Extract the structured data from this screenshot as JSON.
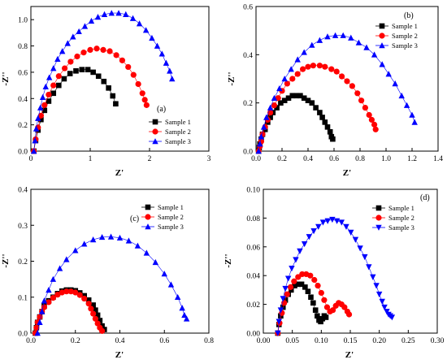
{
  "chart_data": [
    {
      "type": "scatter",
      "panel_label": "(a)",
      "xlabel": "Z'",
      "ylabel": "-Z''",
      "xlim": [
        0,
        3
      ],
      "ylim": [
        0,
        1.1
      ],
      "xticks": [
        "0",
        "1",
        "2",
        "3"
      ],
      "yticks": [
        "0.0",
        "0.2",
        "0.4",
        "0.6",
        "0.8",
        "1.0"
      ],
      "legend": "lower-right",
      "series": [
        {
          "name": "Sample 1",
          "marker": "square",
          "color": "#000000",
          "x": [
            0.05,
            0.08,
            0.12,
            0.17,
            0.23,
            0.3,
            0.38,
            0.47,
            0.56,
            0.66,
            0.76,
            0.86,
            0.96,
            1.05,
            1.14,
            1.23,
            1.31,
            1.38,
            1.43
          ],
          "y": [
            0.0,
            0.08,
            0.16,
            0.24,
            0.31,
            0.38,
            0.44,
            0.5,
            0.55,
            0.59,
            0.61,
            0.62,
            0.62,
            0.6,
            0.57,
            0.53,
            0.48,
            0.42,
            0.36
          ]
        },
        {
          "name": "Sample 2",
          "marker": "circle",
          "color": "#ff0000",
          "x": [
            0.05,
            0.08,
            0.12,
            0.17,
            0.23,
            0.3,
            0.38,
            0.47,
            0.57,
            0.67,
            0.78,
            0.89,
            1.0,
            1.11,
            1.22,
            1.33,
            1.44,
            1.54,
            1.64,
            1.73,
            1.81,
            1.88,
            1.92,
            1.95
          ],
          "y": [
            0.0,
            0.09,
            0.18,
            0.27,
            0.35,
            0.43,
            0.5,
            0.57,
            0.63,
            0.68,
            0.72,
            0.75,
            0.77,
            0.78,
            0.77,
            0.76,
            0.73,
            0.69,
            0.64,
            0.58,
            0.51,
            0.44,
            0.39,
            0.35
          ]
        },
        {
          "name": "Sample 3",
          "marker": "triangle",
          "color": "#0000ff",
          "x": [
            0.05,
            0.07,
            0.09,
            0.12,
            0.16,
            0.2,
            0.25,
            0.31,
            0.38,
            0.45,
            0.53,
            0.62,
            0.71,
            0.81,
            0.91,
            1.02,
            1.13,
            1.24,
            1.36,
            1.48,
            1.6,
            1.72,
            1.83,
            1.94,
            2.04,
            2.13,
            2.21,
            2.28,
            2.34,
            2.38
          ],
          "y": [
            0.0,
            0.08,
            0.17,
            0.25,
            0.33,
            0.41,
            0.49,
            0.56,
            0.63,
            0.7,
            0.76,
            0.82,
            0.87,
            0.91,
            0.95,
            0.99,
            1.02,
            1.04,
            1.05,
            1.05,
            1.04,
            1.01,
            0.97,
            0.92,
            0.86,
            0.8,
            0.74,
            0.67,
            0.61,
            0.55
          ]
        }
      ]
    },
    {
      "type": "scatter",
      "panel_label": "(b)",
      "xlabel": "Z'",
      "ylabel": "-Z''",
      "xlim": [
        0,
        1.4
      ],
      "ylim": [
        0,
        0.6
      ],
      "xticks": [
        "0.0",
        "0.2",
        "0.4",
        "0.6",
        "0.8",
        "1.0",
        "1.2",
        "1.4"
      ],
      "yticks": [
        "0.0",
        "0.2",
        "0.4",
        "0.6"
      ],
      "legend": "top-right",
      "series": [
        {
          "name": "Sample 1",
          "marker": "square",
          "color": "#000000",
          "x": [
            0.02,
            0.025,
            0.03,
            0.04,
            0.05,
            0.07,
            0.09,
            0.11,
            0.13,
            0.16,
            0.19,
            0.22,
            0.25,
            0.28,
            0.31,
            0.34,
            0.37,
            0.4,
            0.43,
            0.46,
            0.49,
            0.51,
            0.53,
            0.55,
            0.57,
            0.58,
            0.59
          ],
          "y": [
            0.0,
            0.015,
            0.03,
            0.05,
            0.07,
            0.09,
            0.12,
            0.14,
            0.16,
            0.18,
            0.2,
            0.21,
            0.22,
            0.23,
            0.23,
            0.23,
            0.22,
            0.21,
            0.2,
            0.18,
            0.16,
            0.14,
            0.12,
            0.1,
            0.08,
            0.06,
            0.05
          ]
        },
        {
          "name": "Sample 2",
          "marker": "circle",
          "color": "#ff0000",
          "x": [
            0.02,
            0.03,
            0.04,
            0.05,
            0.07,
            0.09,
            0.11,
            0.14,
            0.17,
            0.2,
            0.24,
            0.28,
            0.32,
            0.36,
            0.4,
            0.44,
            0.49,
            0.53,
            0.58,
            0.62,
            0.66,
            0.7,
            0.74,
            0.78,
            0.81,
            0.84,
            0.87,
            0.89,
            0.91,
            0.92
          ],
          "y": [
            0.0,
            0.02,
            0.04,
            0.07,
            0.1,
            0.13,
            0.16,
            0.19,
            0.22,
            0.25,
            0.28,
            0.3,
            0.32,
            0.34,
            0.35,
            0.355,
            0.355,
            0.35,
            0.34,
            0.33,
            0.31,
            0.29,
            0.27,
            0.24,
            0.21,
            0.18,
            0.15,
            0.13,
            0.11,
            0.09
          ]
        },
        {
          "name": "Sample 3",
          "marker": "triangle",
          "color": "#0000ff",
          "x": [
            0.02,
            0.03,
            0.04,
            0.06,
            0.08,
            0.11,
            0.14,
            0.18,
            0.22,
            0.27,
            0.32,
            0.37,
            0.43,
            0.49,
            0.55,
            0.61,
            0.67,
            0.73,
            0.79,
            0.85,
            0.91,
            0.97,
            1.02,
            1.07,
            1.12,
            1.16,
            1.2,
            1.22
          ],
          "y": [
            0.0,
            0.03,
            0.06,
            0.1,
            0.14,
            0.18,
            0.22,
            0.26,
            0.3,
            0.34,
            0.38,
            0.41,
            0.44,
            0.46,
            0.475,
            0.48,
            0.48,
            0.47,
            0.45,
            0.43,
            0.4,
            0.36,
            0.32,
            0.28,
            0.23,
            0.19,
            0.15,
            0.12
          ]
        }
      ]
    },
    {
      "type": "scatter",
      "panel_label": "(c)",
      "xlabel": "Z'",
      "ylabel": "-Z''",
      "xlim": [
        0,
        0.8
      ],
      "ylim": [
        0,
        0.4
      ],
      "xticks": [
        "0.0",
        "0.2",
        "0.4",
        "0.6",
        "0.8"
      ],
      "yticks": [
        "0.0",
        "0.1",
        "0.2",
        "0.3",
        "0.4"
      ],
      "legend": "top-right",
      "series": [
        {
          "name": "Sample 1",
          "marker": "square",
          "color": "#000000",
          "x": [
            0.02,
            0.025,
            0.03,
            0.04,
            0.05,
            0.06,
            0.08,
            0.1,
            0.12,
            0.14,
            0.16,
            0.18,
            0.2,
            0.22,
            0.24,
            0.26,
            0.28,
            0.29,
            0.3,
            0.31,
            0.32,
            0.33
          ],
          "y": [
            0.0,
            0.015,
            0.03,
            0.045,
            0.06,
            0.075,
            0.09,
            0.1,
            0.11,
            0.117,
            0.12,
            0.12,
            0.118,
            0.112,
            0.104,
            0.092,
            0.078,
            0.064,
            0.05,
            0.035,
            0.02,
            0.01
          ]
        },
        {
          "name": "Sample 2",
          "marker": "circle",
          "color": "#ff0000",
          "x": [
            0.02,
            0.025,
            0.03,
            0.04,
            0.05,
            0.06,
            0.08,
            0.1,
            0.12,
            0.14,
            0.16,
            0.18,
            0.2,
            0.22,
            0.24,
            0.26,
            0.27,
            0.28,
            0.29,
            0.3,
            0.31,
            0.32
          ],
          "y": [
            0.0,
            0.015,
            0.03,
            0.045,
            0.06,
            0.072,
            0.086,
            0.098,
            0.107,
            0.113,
            0.116,
            0.116,
            0.113,
            0.106,
            0.096,
            0.082,
            0.068,
            0.054,
            0.04,
            0.027,
            0.015,
            0.006
          ]
        },
        {
          "name": "Sample 3",
          "marker": "triangle",
          "color": "#0000ff",
          "x": [
            0.03,
            0.04,
            0.05,
            0.06,
            0.08,
            0.1,
            0.13,
            0.16,
            0.2,
            0.24,
            0.28,
            0.32,
            0.36,
            0.4,
            0.44,
            0.48,
            0.52,
            0.56,
            0.6,
            0.63,
            0.66,
            0.68,
            0.69,
            0.7
          ],
          "y": [
            0.0,
            0.03,
            0.06,
            0.09,
            0.12,
            0.15,
            0.18,
            0.205,
            0.23,
            0.248,
            0.26,
            0.267,
            0.268,
            0.265,
            0.257,
            0.243,
            0.223,
            0.197,
            0.165,
            0.135,
            0.1,
            0.07,
            0.05,
            0.04
          ]
        }
      ]
    },
    {
      "type": "scatter",
      "panel_label": "(d)",
      "xlabel": "Z'",
      "ylabel": "-Z''",
      "xlim": [
        0,
        0.3
      ],
      "ylim": [
        0,
        0.1
      ],
      "xticks": [
        "0.00",
        "0.05",
        "0.10",
        "0.15",
        "0.20",
        "0.25",
        "0.30"
      ],
      "yticks": [
        "0.00",
        "0.02",
        "0.04",
        "0.06",
        "0.08",
        "0.10"
      ],
      "legend": "top-right",
      "series": [
        {
          "name": "Sample 1",
          "marker": "square",
          "color": "#000000",
          "x": [
            0.025,
            0.027,
            0.03,
            0.034,
            0.038,
            0.043,
            0.048,
            0.054,
            0.06,
            0.066,
            0.072,
            0.077,
            0.082,
            0.086,
            0.09,
            0.093,
            0.096,
            0.099,
            0.102,
            0.105,
            0.108
          ],
          "y": [
            0.0,
            0.006,
            0.012,
            0.018,
            0.023,
            0.027,
            0.03,
            0.033,
            0.034,
            0.034,
            0.032,
            0.029,
            0.025,
            0.021,
            0.016,
            0.012,
            0.009,
            0.008,
            0.01,
            0.012,
            0.011
          ]
        },
        {
          "name": "Sample 2",
          "marker": "circle",
          "color": "#ff0000",
          "x": [
            0.025,
            0.028,
            0.032,
            0.036,
            0.041,
            0.047,
            0.053,
            0.06,
            0.067,
            0.074,
            0.081,
            0.088,
            0.094,
            0.1,
            0.105,
            0.11,
            0.115,
            0.12,
            0.125,
            0.13,
            0.135,
            0.14,
            0.145,
            0.148
          ],
          "y": [
            0.0,
            0.007,
            0.014,
            0.021,
            0.027,
            0.032,
            0.036,
            0.039,
            0.041,
            0.041,
            0.04,
            0.037,
            0.033,
            0.028,
            0.023,
            0.018,
            0.015,
            0.016,
            0.019,
            0.021,
            0.02,
            0.018,
            0.015,
            0.013
          ]
        },
        {
          "name": "Sample 3",
          "marker": "triangle-down",
          "color": "#0000ff",
          "x": [
            0.025,
            0.027,
            0.03,
            0.034,
            0.038,
            0.043,
            0.049,
            0.056,
            0.063,
            0.071,
            0.079,
            0.087,
            0.095,
            0.103,
            0.111,
            0.119,
            0.127,
            0.135,
            0.143,
            0.151,
            0.159,
            0.167,
            0.175,
            0.182,
            0.189,
            0.195,
            0.2,
            0.205,
            0.209,
            0.213,
            0.216,
            0.219,
            0.222
          ],
          "y": [
            0.0,
            0.008,
            0.016,
            0.024,
            0.031,
            0.038,
            0.045,
            0.051,
            0.057,
            0.062,
            0.067,
            0.071,
            0.074,
            0.077,
            0.078,
            0.079,
            0.078,
            0.077,
            0.074,
            0.07,
            0.065,
            0.059,
            0.053,
            0.046,
            0.039,
            0.033,
            0.027,
            0.022,
            0.018,
            0.015,
            0.013,
            0.012,
            0.011
          ]
        }
      ]
    }
  ]
}
